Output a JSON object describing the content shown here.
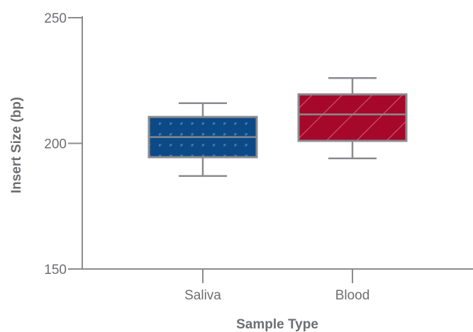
{
  "chart_data": {
    "type": "box",
    "title": "",
    "xlabel": "Sample Type",
    "ylabel": "Insert Size (bp)",
    "ylim": [
      150,
      250
    ],
    "yticks": [
      150,
      200,
      250
    ],
    "ytick_labels": [
      "150",
      "200",
      "250"
    ],
    "grid": false,
    "categories": [
      "Saliva",
      "Blood"
    ],
    "boxes": [
      {
        "category": "Saliva",
        "whisker_low": 187,
        "q1": 194.5,
        "median": 202.5,
        "q3": 210.5,
        "whisker_high": 216,
        "color": "#0b4a87",
        "pattern": "dots"
      },
      {
        "category": "Blood",
        "whisker_low": 194,
        "q1": 201,
        "median": 211.5,
        "q3": 219.5,
        "whisker_high": 226,
        "color": "#a5082b",
        "pattern": "diagonal-stripes"
      }
    ],
    "axis_color": "#8a8b8e",
    "box_border_color": "#8a8b8e"
  }
}
